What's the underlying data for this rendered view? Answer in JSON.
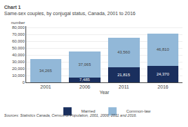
{
  "chart_data": {
    "type": "bar",
    "title": "Chart 1",
    "subtitle": "Same-sex couples, by conjugal status, Canada, 2001 to 2016",
    "xlabel": "Year",
    "ylabel": "number",
    "annotations": [
      "Sources: Statistics Canada, Census of Population, 2001, 2006, 2011 and 2016."
    ],
    "categories": [
      "2001",
      "2006",
      "2011",
      "2016"
    ],
    "series": [
      {
        "name": "Married",
        "color": "#1a2f5e",
        "values": [
          0,
          7485,
          21815,
          24370
        ],
        "value_labels": [
          null,
          "7,485",
          "21,815",
          "24,370"
        ]
      },
      {
        "name": "Common-law",
        "color": "#92b8d8",
        "values": [
          34265,
          37065,
          43560,
          46810
        ],
        "value_labels": [
          "34,265",
          "37,065",
          "43,560",
          "46,810"
        ]
      }
    ],
    "stacked": true,
    "data_labels": true,
    "ylim": [
      0,
      82000
    ],
    "yticks": [
      0,
      {
        "value": 10000,
        "label": "10,000"
      },
      {
        "value": 20000,
        "label": "20,000"
      },
      {
        "value": 30000,
        "label": "30,000"
      },
      {
        "value": 40000,
        "label": "40,000"
      },
      {
        "value": 50000,
        "label": "50,000"
      },
      {
        "value": 60000,
        "label": "60,000"
      },
      {
        "value": 70000,
        "label": "70,000"
      },
      {
        "value": 80000,
        "label": "80,000"
      }
    ],
    "grid": true,
    "legend": "bottom"
  }
}
